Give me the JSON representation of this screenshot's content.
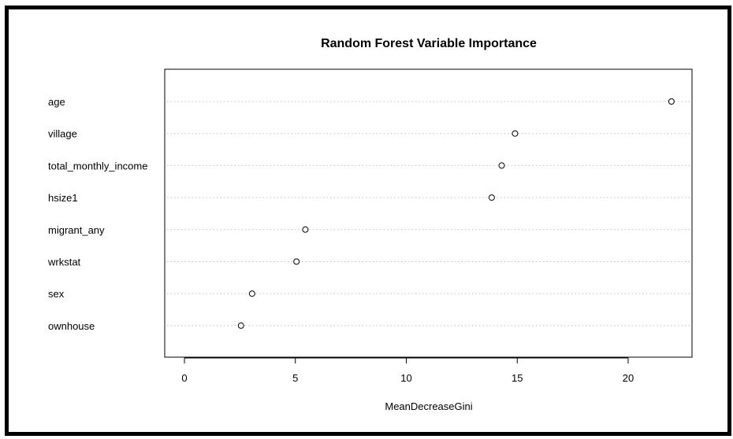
{
  "chart_data": {
    "type": "scatter",
    "title": "Random Forest Variable Importance",
    "xlabel": "MeanDecreaseGini",
    "ylabel": "",
    "xlim": [
      -0.9,
      22.9
    ],
    "xticks": [
      0,
      5,
      10,
      15,
      20
    ],
    "grid": "dotted horizontal guide lines per variable",
    "variables": [
      "age",
      "village",
      "total_monthly_income",
      "hsize1",
      "migrant_any",
      "wrkstat",
      "sex",
      "ownhouse"
    ],
    "values": [
      21.95,
      14.9,
      14.3,
      13.85,
      5.45,
      5.05,
      3.05,
      2.55
    ],
    "colors": {
      "axis": "#000000",
      "grid": "#bdbdbd",
      "point": "#000000"
    }
  }
}
